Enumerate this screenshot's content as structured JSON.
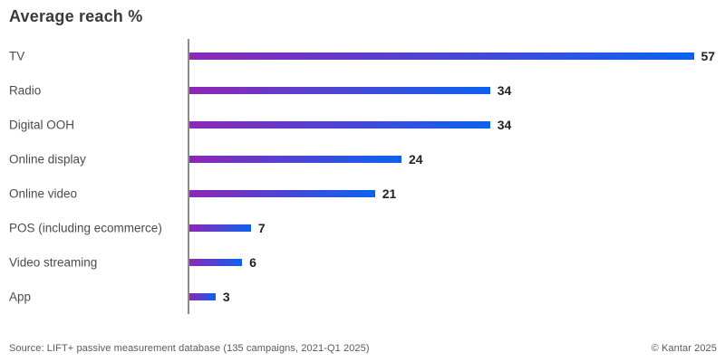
{
  "title": "Average reach %",
  "footer": {
    "source": "Source: LIFT+ passive measurement database (135 campaigns, 2021-Q1 2025)",
    "copyright": "© Kantar 2025"
  },
  "colors": {
    "bar_gradient_start": "#8e27b6",
    "bar_gradient_end": "#0b62f0",
    "axis_line": "#8c8c8c",
    "title_text": "#3a3a3e",
    "category_text": "#4b4b4b",
    "value_text": "#222222",
    "footer_text": "#5a5a5a"
  },
  "chart_data": {
    "type": "bar",
    "orientation": "horizontal",
    "title": "Average reach %",
    "xlabel": "",
    "ylabel": "",
    "categories": [
      "TV",
      "Radio",
      "Digital OOH",
      "Online display",
      "Online video",
      "POS (including ecommerce)",
      "Video streaming",
      "App"
    ],
    "values": [
      57,
      34,
      34,
      24,
      21,
      7,
      6,
      3
    ],
    "xlim": [
      0,
      58
    ],
    "grid": false,
    "legend": false,
    "value_labels_shown": true,
    "bar_gradient": [
      "#8e27b6",
      "#0b62f0"
    ]
  }
}
